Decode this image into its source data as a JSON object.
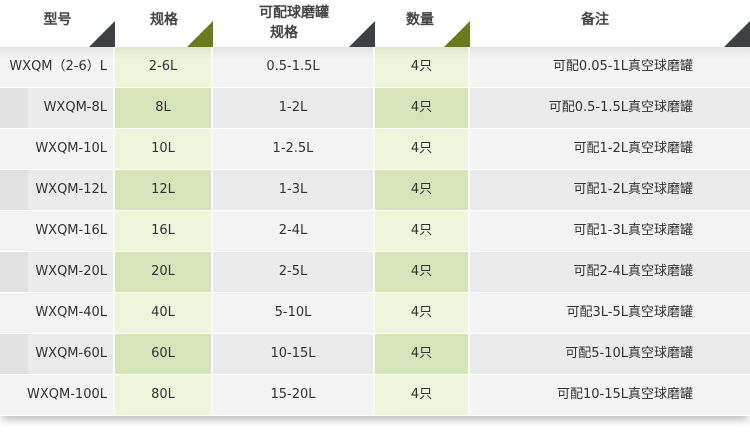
{
  "header": {
    "model": "型号",
    "spec": "规格",
    "jar_spec_line1": "可配球磨罐",
    "jar_spec_line2": "规格",
    "quantity": "数量",
    "remark": "备注"
  },
  "colors": {
    "green_light": "#eef5db",
    "green_dark": "#d7e4b9",
    "gray_light": "#f3f3f3",
    "gray_dark": "#ebebeb",
    "corner_dark": "#3d4144",
    "corner_green": "#6a7a1c"
  },
  "rows": [
    {
      "model": "WXQM（2-6）L",
      "spec": "2-6L",
      "jar": "0.5-1.5L",
      "qty": "4只",
      "remark": "可配0.05-1L真空球磨罐"
    },
    {
      "model": "WXQM-8L",
      "spec": "8L",
      "jar": "1-2L",
      "qty": "4只",
      "remark": "可配0.5-1.5L真空球磨罐"
    },
    {
      "model": "WXQM-10L",
      "spec": "10L",
      "jar": "1-2.5L",
      "qty": "4只",
      "remark": "可配1-2L真空球磨罐"
    },
    {
      "model": "WXQM-12L",
      "spec": "12L",
      "jar": "1-3L",
      "qty": "4只",
      "remark": "可配1-2L真空球磨罐"
    },
    {
      "model": "WXQM-16L",
      "spec": "16L",
      "jar": "2-4L",
      "qty": "4只",
      "remark": "可配1-3L真空球磨罐"
    },
    {
      "model": "WXQM-20L",
      "spec": "20L",
      "jar": "2-5L",
      "qty": "4只",
      "remark": "可配2-4L真空球磨罐"
    },
    {
      "model": "WXQM-40L",
      "spec": "40L",
      "jar": "5-10L",
      "qty": "4只",
      "remark": "可配3L-5L真空球磨罐"
    },
    {
      "model": "WXQM-60L",
      "spec": "60L",
      "jar": "10-15L",
      "qty": "4只",
      "remark": "可配5-10L真空球磨罐"
    },
    {
      "model": "WXQM-100L",
      "spec": "80L",
      "jar": "15-20L",
      "qty": "4只",
      "remark": "可配10-15L真空球磨罐"
    }
  ]
}
